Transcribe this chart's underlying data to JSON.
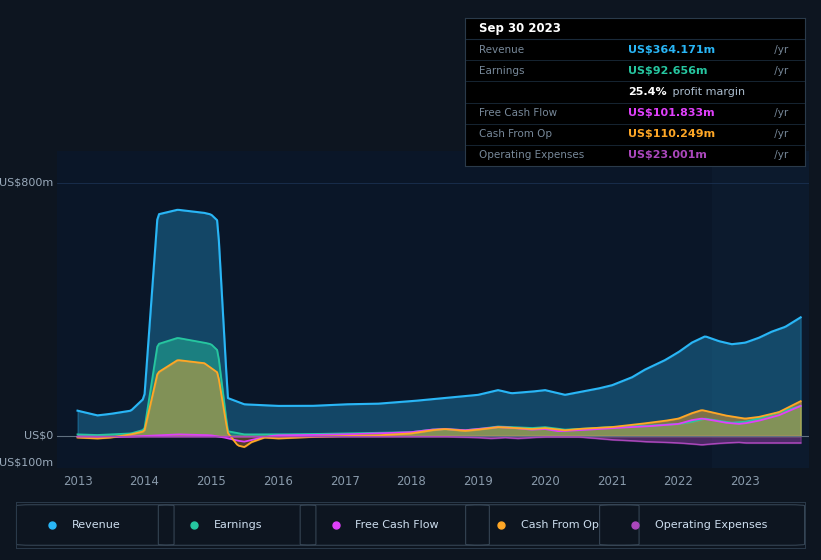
{
  "bg_color": "#0d1520",
  "plot_bg_color": "#0a1628",
  "grid_color": "#1a3050",
  "revenue_color": "#29b6f6",
  "earnings_color": "#26c6a0",
  "fcf_color": "#e040fb",
  "cashfromop_color": "#ffa726",
  "opex_color": "#ab47bc",
  "info_box": {
    "date": "Sep 30 2023",
    "revenue_label": "Revenue",
    "revenue_val": "US$364.171m",
    "earnings_label": "Earnings",
    "earnings_val": "US$92.656m",
    "margin_bold": "25.4%",
    "margin_rest": " profit margin",
    "fcf_label": "Free Cash Flow",
    "fcf_val": "US$101.833m",
    "cashop_label": "Cash From Op",
    "cashop_val": "US$110.249m",
    "opex_label": "Operating Expenses",
    "opex_val": "US$23.001m",
    "yr": " /yr"
  },
  "legend": [
    {
      "label": "Revenue",
      "color": "#29b6f6"
    },
    {
      "label": "Earnings",
      "color": "#26c6a0"
    },
    {
      "label": "Free Cash Flow",
      "color": "#e040fb"
    },
    {
      "label": "Cash From Op",
      "color": "#ffa726"
    },
    {
      "label": "Operating Expenses",
      "color": "#ab47bc"
    }
  ]
}
